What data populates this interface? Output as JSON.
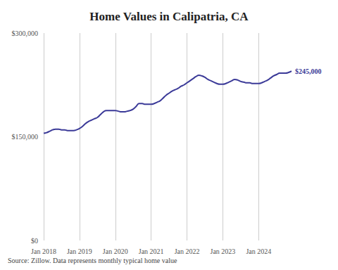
{
  "chart_data": {
    "type": "line",
    "title": "Home Values in Calipatria, CA",
    "source": "Source: Zillow. Data represents monthly typical home value",
    "categories": [
      "Jan 2018",
      null,
      null,
      null,
      null,
      null,
      null,
      null,
      null,
      null,
      null,
      null,
      "Jan 2019",
      null,
      null,
      null,
      null,
      null,
      null,
      null,
      null,
      null,
      null,
      null,
      "Jan 2020",
      null,
      null,
      null,
      null,
      null,
      null,
      null,
      null,
      null,
      null,
      null,
      "Jan 2021",
      null,
      null,
      null,
      null,
      null,
      null,
      null,
      null,
      null,
      null,
      null,
      "Jan 2022",
      null,
      null,
      null,
      null,
      null,
      null,
      null,
      null,
      null,
      null,
      null,
      "Jan 2023",
      null,
      null,
      null,
      null,
      null,
      null,
      null,
      null,
      null,
      null,
      null,
      "Jan 2024",
      null,
      null,
      null,
      null,
      null,
      null,
      null,
      null,
      null,
      null,
      null
    ],
    "values": [
      155000,
      156000,
      158000,
      160000,
      161000,
      161000,
      160000,
      160000,
      159000,
      159000,
      159000,
      160000,
      162000,
      165000,
      169000,
      172000,
      174000,
      176000,
      178000,
      182000,
      186000,
      188000,
      188000,
      188000,
      188000,
      187000,
      186000,
      186000,
      187000,
      188000,
      190000,
      194000,
      198000,
      198000,
      197000,
      197000,
      197000,
      198000,
      200000,
      202000,
      206000,
      210000,
      213000,
      216000,
      218000,
      220000,
      223000,
      225000,
      228000,
      231000,
      234000,
      237000,
      239000,
      238000,
      236000,
      233000,
      231000,
      229000,
      227000,
      226000,
      226000,
      227000,
      229000,
      231000,
      233000,
      232000,
      230000,
      229000,
      228000,
      228000,
      227000,
      227000,
      227000,
      228000,
      230000,
      232000,
      235000,
      238000,
      240000,
      242000,
      242000,
      242000,
      243000,
      245000
    ],
    "end_label": "$245,000",
    "color": "#3b3a98",
    "ylim": [
      0,
      300000
    ],
    "yticks": [
      {
        "value": 0,
        "label": "$0"
      },
      {
        "value": 150000,
        "label": "$150,000"
      },
      {
        "value": 300000,
        "label": "$300,000"
      }
    ],
    "grid": true
  }
}
